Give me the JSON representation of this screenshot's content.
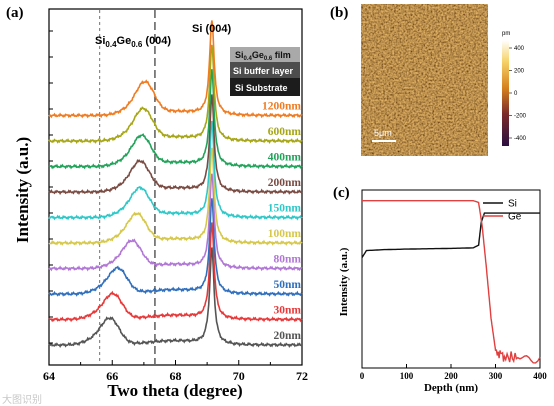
{
  "panel_labels": {
    "a": "(a)",
    "b": "(b)",
    "c": "(c)"
  },
  "chart_data": [
    {
      "panel": "a",
      "type": "line",
      "xlabel": "Two theta (degree)",
      "ylabel": "Intensity (a.u.)",
      "xlim": [
        64,
        72
      ],
      "xticks": [
        "64",
        "66",
        "68",
        "70",
        "72"
      ],
      "annotations": {
        "sige_peak": {
          "pre": "Si",
          "s1": "0.4",
          "mid": "Ge",
          "s2": "0.6",
          "post": " (004)"
        },
        "si_peak": "Si (004)"
      },
      "reference_lines": [
        65.6,
        67.35
      ],
      "layer_legend": {
        "film": {
          "pre": "Si",
          "s1": "0.4",
          "mid": "Ge",
          "s2": "0.6",
          "post": " film"
        },
        "buffer": "Si buffer layer",
        "substrate": "Si Substrate"
      },
      "series": [
        {
          "name": "20nm",
          "color": "#555555",
          "sige_peak_2theta": 65.95,
          "sige_height": 1.0
        },
        {
          "name": "30nm",
          "color": "#e8393a",
          "sige_peak_2theta": 66.05,
          "sige_height": 0.95
        },
        {
          "name": "50nm",
          "color": "#2f6fbd",
          "sige_peak_2theta": 66.2,
          "sige_height": 0.95
        },
        {
          "name": "80nm",
          "color": "#b177d6",
          "sige_peak_2theta": 66.65,
          "sige_height": 1.0
        },
        {
          "name": "100nm",
          "color": "#d6c84b",
          "sige_peak_2theta": 66.8,
          "sige_height": 1.05
        },
        {
          "name": "150nm",
          "color": "#2fc8c8",
          "sige_peak_2theta": 66.9,
          "sige_height": 1.05
        },
        {
          "name": "200nm",
          "color": "#7a4b42",
          "sige_peak_2theta": 66.9,
          "sige_height": 1.1
        },
        {
          "name": "400nm",
          "color": "#22a35a",
          "sige_peak_2theta": 66.95,
          "sige_height": 1.1
        },
        {
          "name": "600nm",
          "color": "#a6a617",
          "sige_peak_2theta": 67.0,
          "sige_height": 1.15
        },
        {
          "name": "1200nm",
          "color": "#f07c22",
          "sige_peak_2theta": 67.05,
          "sige_height": 1.2
        }
      ],
      "si_peak_2theta": 69.15
    },
    {
      "panel": "b",
      "type": "heatmap",
      "scale_bar": "5μm",
      "colorbar_unit": "pm",
      "colorbar_ticks": [
        "400",
        "200",
        "0",
        "-200",
        "-400"
      ]
    },
    {
      "panel": "c",
      "type": "line",
      "xlabel": "Depth (nm)",
      "ylabel": "Intensity (a.u.)",
      "xlim": [
        0,
        400
      ],
      "xticks": [
        "0",
        "100",
        "200",
        "300",
        "400"
      ],
      "series": [
        {
          "name": "Si",
          "color": "#111111",
          "x": [
            0,
            10,
            50,
            100,
            150,
            200,
            250,
            262,
            268,
            275,
            300,
            350,
            400
          ],
          "y": [
            0.62,
            0.66,
            0.665,
            0.668,
            0.67,
            0.672,
            0.675,
            0.69,
            0.82,
            0.87,
            0.87,
            0.87,
            0.87
          ]
        },
        {
          "name": "Ge",
          "color": "#e0403f",
          "x": [
            0,
            50,
            100,
            150,
            200,
            250,
            262,
            270,
            280,
            290,
            300,
            320,
            350,
            400
          ],
          "y": [
            0.94,
            0.94,
            0.94,
            0.94,
            0.94,
            0.94,
            0.93,
            0.8,
            0.55,
            0.28,
            0.1,
            0.06,
            0.06,
            0.06
          ]
        }
      ]
    }
  ],
  "colors": {
    "afm_dark": "#5a2a0a",
    "afm_mid": "#c8781e",
    "afm_light": "#f5c85a"
  },
  "watermark": "大图识别"
}
